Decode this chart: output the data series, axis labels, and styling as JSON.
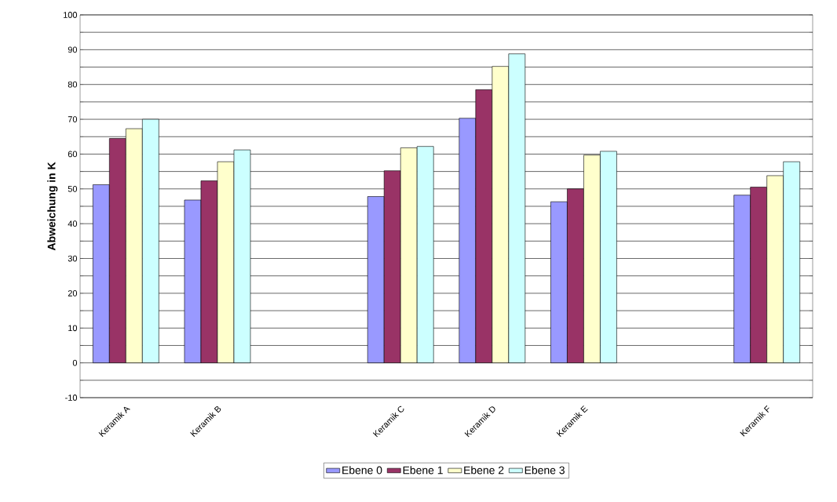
{
  "chart_data": {
    "type": "bar",
    "ylabel": "Abweichung in K",
    "categories": [
      "Keramik A",
      "Keramik B",
      null,
      "Keramik C",
      "Keramik D",
      "Keramik E",
      null,
      "Keramik F"
    ],
    "series": [
      {
        "name": "Ebene 0",
        "color": "#9999ff",
        "values": [
          51.2,
          46.8,
          null,
          47.8,
          70.3,
          46.3,
          null,
          48.2
        ]
      },
      {
        "name": "Ebene 1",
        "color": "#993366",
        "values": [
          64.5,
          52.3,
          null,
          55.2,
          78.5,
          50.0,
          null,
          50.5
        ]
      },
      {
        "name": "Ebene 2",
        "color": "#ffffcc",
        "values": [
          67.3,
          57.8,
          null,
          61.8,
          85.2,
          59.7,
          null,
          53.8
        ]
      },
      {
        "name": "Ebene 3",
        "color": "#ccffff",
        "values": [
          70.0,
          61.2,
          null,
          62.2,
          88.8,
          60.8,
          null,
          57.8
        ]
      }
    ],
    "ylim": [
      -10,
      100
    ],
    "yticks": [
      -10,
      {
        "value": -5,
        "label": null
      },
      0,
      {
        "value": 5,
        "label": null
      },
      10,
      {
        "value": 15,
        "label": null
      },
      20,
      {
        "value": 25,
        "label": null
      },
      30,
      {
        "value": 35,
        "label": null
      },
      40,
      {
        "value": 45,
        "label": null
      },
      50,
      {
        "value": 55,
        "label": null
      },
      60,
      {
        "value": 65,
        "label": null
      },
      70,
      {
        "value": 75,
        "label": null
      },
      80,
      {
        "value": 85,
        "label": null
      },
      90,
      {
        "value": 95,
        "label": null
      },
      100
    ],
    "grid": "y",
    "legend": "bottom"
  }
}
